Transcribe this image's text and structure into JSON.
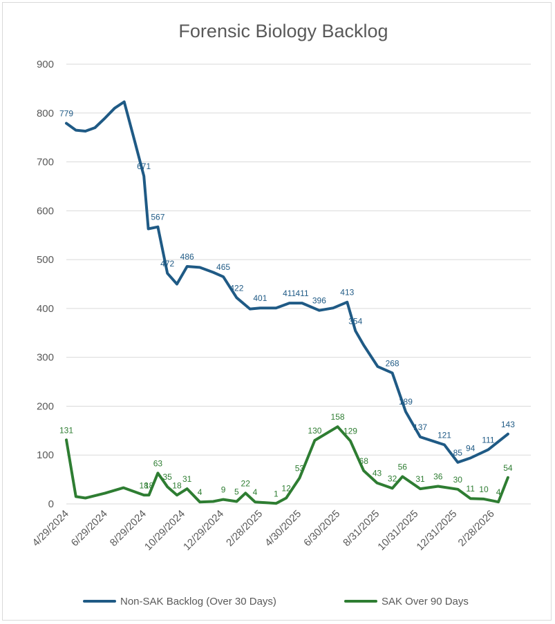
{
  "chart_data": {
    "type": "line",
    "title": "Forensic Biology Backlog",
    "xlabel": "",
    "ylabel": "",
    "ylim": [
      0,
      900
    ],
    "y_ticks": [
      0,
      100,
      200,
      300,
      400,
      500,
      600,
      700,
      800,
      900
    ],
    "x_range": [
      "2024-04-29",
      "2026-04-30"
    ],
    "x_tick_labels": [
      "4/29/2024",
      "6/29/2024",
      "8/29/2024",
      "10/29/2024",
      "12/29/2024",
      "2/28/2025",
      "4/30/2025",
      "6/30/2025",
      "8/31/2025",
      "10/31/2025",
      "12/31/2025",
      "2/28/2026"
    ],
    "x_tick_dates": [
      "2024-04-29",
      "2024-06-29",
      "2024-08-29",
      "2024-10-29",
      "2024-12-29",
      "2025-02-28",
      "2025-04-30",
      "2025-06-30",
      "2025-08-31",
      "2025-10-31",
      "2025-12-31",
      "2026-02-28"
    ],
    "gridlines": "horizontal",
    "legend_position": "bottom",
    "series": [
      {
        "name": "Non-SAK Backlog (Over 30 Days)",
        "color": "#1f5a85",
        "points": [
          {
            "x": "2024-04-29",
            "y": 779,
            "label": "779"
          },
          {
            "x": "2024-05-14",
            "y": 765
          },
          {
            "x": "2024-05-29",
            "y": 763
          },
          {
            "x": "2024-06-13",
            "y": 770
          },
          {
            "x": "2024-06-29",
            "y": 790
          },
          {
            "x": "2024-07-14",
            "y": 810
          },
          {
            "x": "2024-07-29",
            "y": 823
          },
          {
            "x": "2024-08-14",
            "y": 745
          },
          {
            "x": "2024-08-29",
            "y": 671,
            "label": "671"
          },
          {
            "x": "2024-09-05",
            "y": 563
          },
          {
            "x": "2024-09-20",
            "y": 567,
            "label": "567"
          },
          {
            "x": "2024-10-05",
            "y": 472,
            "label": "472"
          },
          {
            "x": "2024-10-20",
            "y": 450
          },
          {
            "x": "2024-11-05",
            "y": 486,
            "label": "486"
          },
          {
            "x": "2024-11-25",
            "y": 484
          },
          {
            "x": "2024-12-16",
            "y": 474
          },
          {
            "x": "2025-01-01",
            "y": 465,
            "label": "465"
          },
          {
            "x": "2025-01-22",
            "y": 422,
            "label": "422"
          },
          {
            "x": "2025-02-12",
            "y": 399
          },
          {
            "x": "2025-02-28",
            "y": 401,
            "label": "401"
          },
          {
            "x": "2025-03-25",
            "y": 401
          },
          {
            "x": "2025-04-15",
            "y": 411,
            "label": "411"
          },
          {
            "x": "2025-05-05",
            "y": 411,
            "label": "411"
          },
          {
            "x": "2025-06-01",
            "y": 396,
            "label": "396"
          },
          {
            "x": "2025-06-23",
            "y": 401
          },
          {
            "x": "2025-07-15",
            "y": 413,
            "label": "413"
          },
          {
            "x": "2025-07-28",
            "y": 354,
            "label": "354"
          },
          {
            "x": "2025-08-10",
            "y": 325
          },
          {
            "x": "2025-09-01",
            "y": 281
          },
          {
            "x": "2025-09-24",
            "y": 268,
            "label": "268"
          },
          {
            "x": "2025-10-15",
            "y": 189,
            "label": "189"
          },
          {
            "x": "2025-11-07",
            "y": 137,
            "label": "137"
          },
          {
            "x": "2025-12-15",
            "y": 121,
            "label": "121"
          },
          {
            "x": "2026-01-05",
            "y": 85,
            "label": "85"
          },
          {
            "x": "2026-01-25",
            "y": 94,
            "label": "94"
          },
          {
            "x": "2026-02-22",
            "y": 111,
            "label": "111"
          },
          {
            "x": "2026-03-25",
            "y": 143,
            "label": "143"
          }
        ]
      },
      {
        "name": "SAK Over 90 Days",
        "color": "#2e7d32",
        "points": [
          {
            "x": "2024-04-29",
            "y": 131,
            "label": "131"
          },
          {
            "x": "2024-05-14",
            "y": 15
          },
          {
            "x": "2024-05-29",
            "y": 12
          },
          {
            "x": "2024-06-29",
            "y": 22
          },
          {
            "x": "2024-07-28",
            "y": 33
          },
          {
            "x": "2024-08-29",
            "y": 18,
            "label": "18"
          },
          {
            "x": "2024-09-06",
            "y": 18,
            "label": "18"
          },
          {
            "x": "2024-09-20",
            "y": 63,
            "label": "63"
          },
          {
            "x": "2024-10-05",
            "y": 35,
            "label": "35"
          },
          {
            "x": "2024-10-20",
            "y": 18,
            "label": "18"
          },
          {
            "x": "2024-11-05",
            "y": 31,
            "label": "31"
          },
          {
            "x": "2024-11-25",
            "y": 4,
            "label": "4"
          },
          {
            "x": "2024-12-16",
            "y": 5
          },
          {
            "x": "2025-01-01",
            "y": 9,
            "label": "9"
          },
          {
            "x": "2025-01-22",
            "y": 5,
            "label": "5"
          },
          {
            "x": "2025-02-05",
            "y": 22,
            "label": "22"
          },
          {
            "x": "2025-02-20",
            "y": 4,
            "label": "4"
          },
          {
            "x": "2025-03-25",
            "y": 1,
            "label": "1"
          },
          {
            "x": "2025-04-10",
            "y": 12,
            "label": "12"
          },
          {
            "x": "2025-05-01",
            "y": 53,
            "label": "53"
          },
          {
            "x": "2025-05-25",
            "y": 130,
            "label": "130"
          },
          {
            "x": "2025-06-30",
            "y": 158,
            "label": "158"
          },
          {
            "x": "2025-07-20",
            "y": 129,
            "label": "129"
          },
          {
            "x": "2025-08-10",
            "y": 68,
            "label": "68"
          },
          {
            "x": "2025-08-31",
            "y": 43,
            "label": "43"
          },
          {
            "x": "2025-09-24",
            "y": 32,
            "label": "32"
          },
          {
            "x": "2025-10-10",
            "y": 56,
            "label": "56"
          },
          {
            "x": "2025-11-07",
            "y": 31,
            "label": "31"
          },
          {
            "x": "2025-12-05",
            "y": 36,
            "label": "36"
          },
          {
            "x": "2026-01-05",
            "y": 30,
            "label": "30"
          },
          {
            "x": "2026-01-25",
            "y": 11,
            "label": "11"
          },
          {
            "x": "2026-02-15",
            "y": 10,
            "label": "10"
          },
          {
            "x": "2026-03-10",
            "y": 4,
            "label": "4"
          },
          {
            "x": "2026-03-25",
            "y": 54,
            "label": "54"
          }
        ]
      }
    ]
  }
}
